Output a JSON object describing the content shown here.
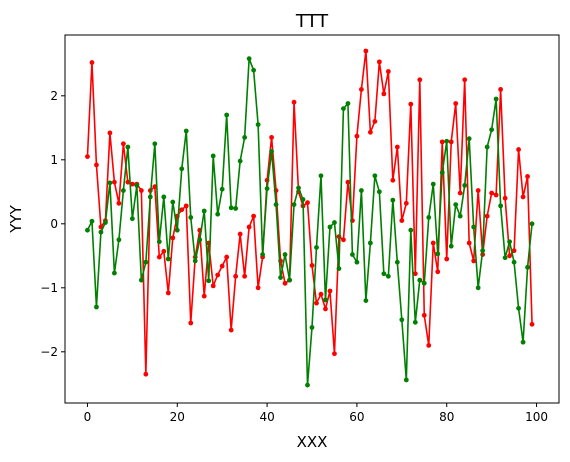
{
  "chart_data": {
    "type": "line",
    "title": "TTT",
    "xlabel": "XXX",
    "ylabel": "YYY",
    "xlim": [
      -5,
      105
    ],
    "ylim": [
      -2.8,
      2.95
    ],
    "xticks": [
      0,
      20,
      40,
      60,
      80,
      100
    ],
    "yticks": [
      -2,
      -1,
      0,
      1,
      2
    ],
    "grid": false,
    "x": [
      0,
      1,
      2,
      3,
      4,
      5,
      6,
      7,
      8,
      9,
      10,
      11,
      12,
      13,
      14,
      15,
      16,
      17,
      18,
      19,
      20,
      21,
      22,
      23,
      24,
      25,
      26,
      27,
      28,
      29,
      30,
      31,
      32,
      33,
      34,
      35,
      36,
      37,
      38,
      39,
      40,
      41,
      42,
      43,
      44,
      45,
      46,
      47,
      48,
      49,
      50,
      51,
      52,
      53,
      54,
      55,
      56,
      57,
      58,
      59,
      60,
      61,
      62,
      63,
      64,
      65,
      66,
      67,
      68,
      69,
      70,
      71,
      72,
      73,
      74,
      75,
      76,
      77,
      78,
      79,
      80,
      81,
      82,
      83,
      84,
      85,
      86,
      87,
      88,
      89,
      90,
      91,
      92,
      93,
      94,
      95,
      96,
      97,
      98,
      99
    ],
    "series": [
      {
        "color": "#ff0000",
        "marker": "circle",
        "values": [
          1.05,
          2.52,
          0.92,
          -0.05,
          0.05,
          1.42,
          0.65,
          0.32,
          1.25,
          0.65,
          0.62,
          0.62,
          0.52,
          -2.35,
          0.52,
          0.58,
          -0.52,
          -0.43,
          -1.08,
          -0.22,
          0.12,
          0.22,
          0.28,
          -1.55,
          -0.52,
          -0.1,
          -1.13,
          -0.3,
          -0.97,
          -0.8,
          -0.66,
          -0.52,
          -1.66,
          -0.82,
          -0.16,
          -0.82,
          -0.05,
          0.12,
          -1.0,
          -0.52,
          0.68,
          1.35,
          0.52,
          -0.58,
          -0.93,
          -0.88,
          1.9,
          0.5,
          0.28,
          0.33,
          -0.65,
          -1.24,
          -1.1,
          -1.33,
          -1.05,
          -2.03,
          -0.2,
          -0.25,
          0.65,
          0.05,
          1.37,
          2.1,
          2.7,
          1.43,
          1.6,
          2.53,
          2.03,
          2.38,
          0.68,
          1.2,
          0.05,
          0.32,
          1.87,
          -0.78,
          2.25,
          -1.43,
          -1.9,
          -0.3,
          -0.75,
          1.28,
          -0.55,
          1.28,
          1.88,
          0.48,
          2.25,
          -0.3,
          -0.58,
          0.52,
          -0.48,
          0.12,
          0.48,
          0.45,
          2.1,
          0.4,
          -0.5,
          -0.42,
          1.16,
          0.42,
          0.74,
          -1.57
        ]
      },
      {
        "color": "#008000",
        "marker": "circle",
        "values": [
          -0.1,
          0.04,
          -1.3,
          -0.13,
          0.02,
          0.64,
          -0.77,
          -0.25,
          0.52,
          1.2,
          0.08,
          0.6,
          -0.88,
          -0.6,
          0.42,
          1.25,
          -0.28,
          0.42,
          -0.55,
          0.34,
          -0.1,
          0.86,
          1.45,
          0.1,
          -0.58,
          -0.25,
          0.2,
          -0.89,
          1.06,
          0.15,
          0.54,
          1.7,
          0.25,
          0.24,
          0.98,
          1.35,
          2.58,
          2.4,
          1.55,
          -0.48,
          0.55,
          1.13,
          0.3,
          -0.84,
          -0.48,
          -0.88,
          0.3,
          0.56,
          0.38,
          -2.52,
          -1.62,
          -0.37,
          0.75,
          -1.19,
          -0.05,
          0.02,
          -0.7,
          1.8,
          1.88,
          -0.48,
          -0.6,
          0.52,
          -1.2,
          -0.3,
          0.75,
          0.5,
          -0.78,
          -0.82,
          0.37,
          -0.6,
          -1.5,
          -2.44,
          -0.1,
          -1.54,
          -0.88,
          -0.93,
          0.1,
          0.62,
          -0.47,
          0.8,
          1.29,
          -0.35,
          0.3,
          0.12,
          0.6,
          1.33,
          -0.05,
          -1.0,
          -0.42,
          1.2,
          1.47,
          1.95,
          0.28,
          -0.53,
          -0.28,
          -0.6,
          -1.32,
          -1.85,
          -0.68,
          0.0
        ]
      }
    ]
  }
}
